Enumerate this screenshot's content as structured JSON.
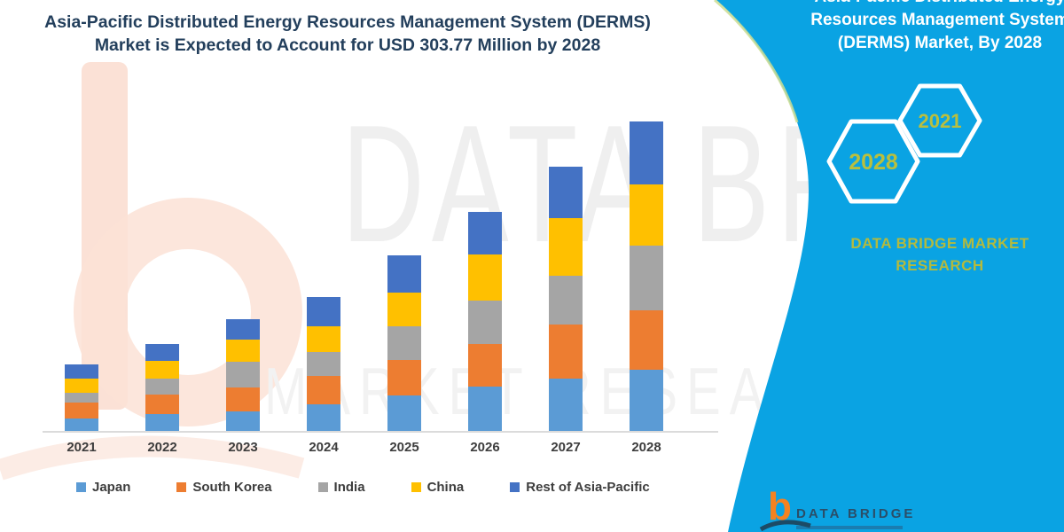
{
  "header": {
    "title_line1": "Asia-Pacific Distributed Energy Resources Management System (DERMS)",
    "title_line2": "Market is Expected to Account for USD 303.77 Million by 2028"
  },
  "watermark": {
    "line1": "DATA BRIDGE",
    "line2": "MARKET RESEARCH"
  },
  "chart_data": {
    "type": "bar",
    "stacked": true,
    "unit": "USD Million",
    "title": "Asia-Pacific Distributed Energy Resources Management System (DERMS) Market is Expected to Account for USD 303.77 Million by 2028",
    "categories": [
      "2021",
      "2022",
      "2023",
      "2024",
      "2025",
      "2026",
      "2027",
      "2028"
    ],
    "series": [
      {
        "name": "Japan",
        "color": "#5B9BD5",
        "values": [
          12.4,
          16.3,
          18.9,
          26.1,
          34.8,
          43.5,
          51.6,
          60.3
        ]
      },
      {
        "name": "South Korea",
        "color": "#ED7D31",
        "values": [
          15.9,
          18.9,
          23.7,
          27.6,
          34.8,
          42.0,
          52.8,
          58.5
        ]
      },
      {
        "name": "India",
        "color": "#A5A5A5",
        "values": [
          9.6,
          15.9,
          25.0,
          23.7,
          33.3,
          42.6,
          47.8,
          63.2
        ]
      },
      {
        "name": "China",
        "color": "#FFC000",
        "values": [
          13.7,
          17.4,
          21.5,
          25.5,
          33.3,
          45.2,
          56.5,
          60.0
        ]
      },
      {
        "name": "Rest of Asia-Pacific",
        "color": "#4472C4",
        "values": [
          13.9,
          16.8,
          19.7,
          28.4,
          36.3,
          41.7,
          50.4,
          61.8
        ]
      }
    ],
    "totals": [
      65.5,
      85.3,
      108.8,
      131.3,
      172.5,
      215.0,
      259.1,
      303.77
    ],
    "ylim": [
      0,
      320
    ],
    "gridlines": false,
    "y_axis_visible": false,
    "legend_position": "bottom"
  },
  "side_panel": {
    "title_line1": "Asia-Pacific Distributed Energy",
    "title_line2": "Resources Management System",
    "title_line3": "(DERMS) Market, By 2028",
    "hexagon_years": [
      "2028",
      "2021"
    ],
    "brand_line1": "DATA BRIDGE MARKET",
    "brand_line2": "RESEARCH",
    "background_color": "#0AA3E3",
    "accent_text_color": "#B9BF3E"
  },
  "footer_logo": {
    "glyph": "b",
    "brand": "DATA BRIDGE"
  }
}
